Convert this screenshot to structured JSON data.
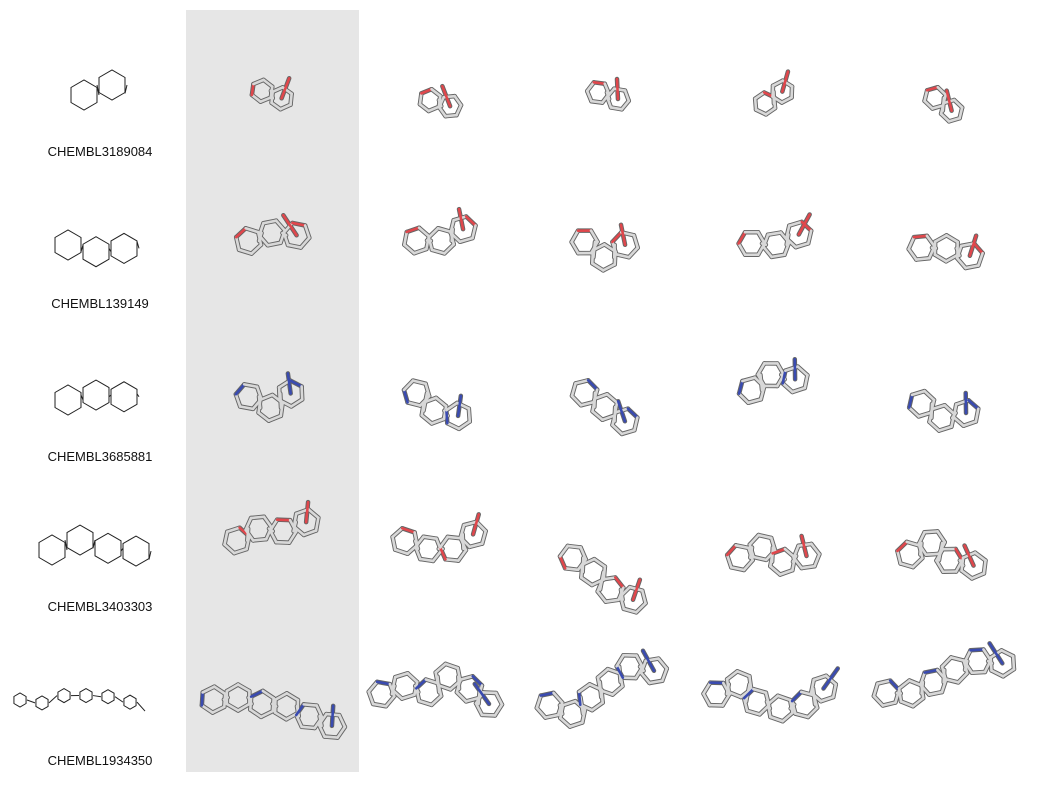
{
  "rows": [
    {
      "label": "CHEMBL3189084"
    },
    {
      "label": "CHEMBL139149"
    },
    {
      "label": "CHEMBL3685881"
    },
    {
      "label": "CHEMBL3403303"
    },
    {
      "label": "CHEMBL1934350"
    }
  ]
}
